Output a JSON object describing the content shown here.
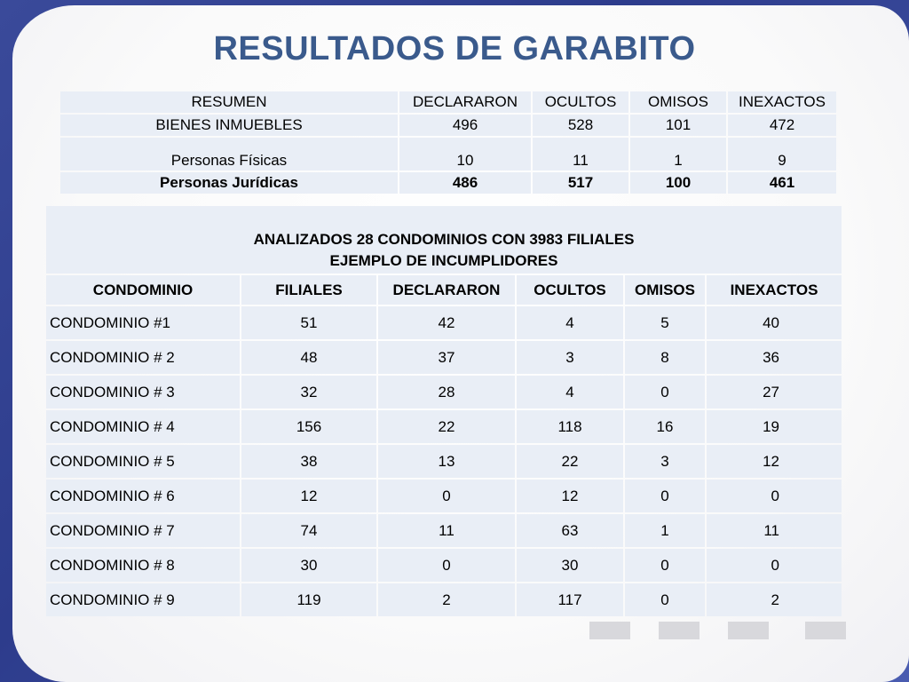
{
  "title": "RESULTADOS DE GARABITO",
  "summary": {
    "headers": [
      "RESUMEN",
      "DECLARARON",
      "OCULTOS",
      "OMISOS",
      "INEXACTOS"
    ],
    "rows": [
      [
        "BIENES INMUEBLES",
        "496",
        "528",
        "101",
        "472"
      ],
      [
        "Personas Físicas",
        "10",
        "11",
        "1",
        "9"
      ],
      [
        "Personas Jurídicas",
        "486",
        "517",
        "100",
        "461"
      ]
    ]
  },
  "detail": {
    "caption_line1": "ANALIZADOS 28 CONDOMINIOS  CON 3983 FILIALES",
    "caption_line2": "EJEMPLO DE INCUMPLIDORES",
    "headers": [
      "CONDOMINIO",
      "FILIALES",
      "DECLARARON",
      "OCULTOS",
      "OMISOS",
      "INEXACTOS"
    ],
    "rows": [
      [
        "CONDOMINIO #1",
        "51",
        "42",
        "4",
        "5",
        "40"
      ],
      [
        "CONDOMINIO # 2",
        "48",
        "37",
        "3",
        "8",
        "36"
      ],
      [
        "CONDOMINIO # 3",
        "32",
        "28",
        "4",
        "0",
        "27"
      ],
      [
        "CONDOMINIO # 4",
        "156",
        "22",
        "118",
        "16",
        "19"
      ],
      [
        "CONDOMINIO # 5",
        "38",
        "13",
        "22",
        "3",
        "12"
      ],
      [
        "CONDOMINIO # 6",
        "12",
        "0",
        "12",
        "0",
        "0"
      ],
      [
        "CONDOMINIO # 7",
        "74",
        "11",
        "63",
        "1",
        "11"
      ],
      [
        "CONDOMINIO # 8",
        "30",
        "0",
        "30",
        "0",
        "0"
      ],
      [
        "CONDOMINIO # 9",
        "119",
        "2",
        "117",
        "0",
        "2"
      ]
    ]
  }
}
